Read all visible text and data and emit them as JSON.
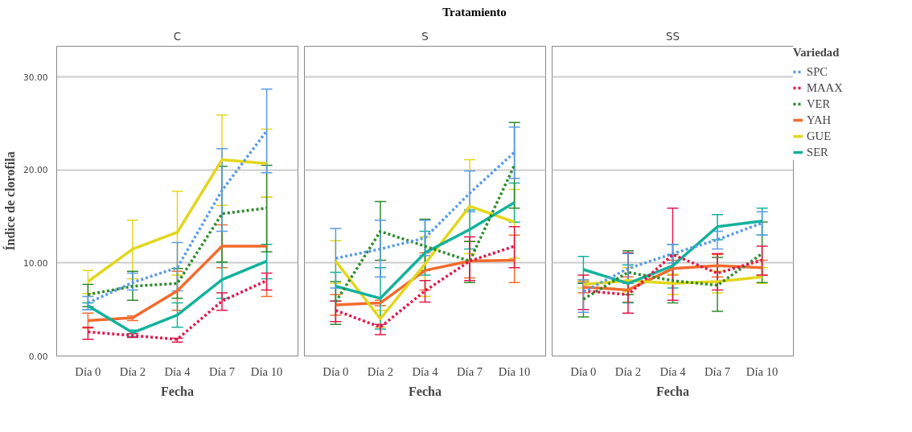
{
  "chart_data": [
    {
      "type": "line",
      "title": "C",
      "annotations": [
        "Tratamiento"
      ],
      "xlabel": "Fecha",
      "ylabel": "Índice de clorofila",
      "categories": [
        "Día 0",
        "Día 2",
        "Día 4",
        "Día 7",
        "Día 10"
      ],
      "ylim": [
        0,
        33.3
      ],
      "yticks": [
        {
          "value": 0,
          "label": "0.00"
        },
        {
          "value": 10,
          "label": "10.00"
        },
        {
          "value": 20,
          "label": "20.00"
        },
        {
          "value": 30,
          "label": "30.00"
        }
      ],
      "grid": "y",
      "series": [
        {
          "color": "#5b9be6",
          "line_style": "dotted",
          "values": [
            5.7,
            7.9,
            9.5,
            17.8,
            24.2
          ],
          "errors": [
            [
              5.0,
              6.4
            ],
            [
              7.1,
              8.9
            ],
            [
              7.0,
              12.2
            ],
            [
              13.4,
              22.3
            ],
            [
              19.7,
              28.7
            ]
          ]
        },
        {
          "color": "#e0184c",
          "line_style": "dotted",
          "values": [
            2.6,
            2.2,
            1.8,
            5.9,
            8.1
          ],
          "errors": [
            [
              1.8,
              3.1
            ],
            [
              2.0,
              2.4
            ],
            [
              1.5,
              1.9
            ],
            [
              4.9,
              6.8
            ],
            [
              7.1,
              8.9
            ]
          ]
        },
        {
          "color": "#2e8b2e",
          "line_style": "dotted",
          "values": [
            6.6,
            7.5,
            7.8,
            15.3,
            15.9
          ],
          "errors": [
            [
              5.3,
              7.7
            ],
            [
              6.0,
              9.1
            ],
            [
              6.2,
              9.4
            ],
            [
              10.1,
              20.4
            ],
            [
              11.2,
              20.5
            ]
          ]
        },
        {
          "color": "#f26b2e",
          "line_style": "solid",
          "values": [
            3.8,
            4.1,
            7.0,
            11.8,
            11.8
          ],
          "errors": [
            [
              3.0,
              4.6
            ],
            [
              3.8,
              4.3
            ],
            [
              4.9,
              9.1
            ],
            [
              9.5,
              14.1
            ],
            [
              6.4,
              17.1
            ]
          ]
        },
        {
          "color": "#e3d61c",
          "line_style": "solid",
          "values": [
            8.0,
            11.5,
            13.3,
            21.1,
            20.7
          ],
          "errors": [
            [
              6.7,
              9.2
            ],
            [
              8.3,
              14.6
            ],
            [
              8.7,
              17.7
            ],
            [
              16.2,
              25.9
            ],
            [
              17.1,
              24.4
            ]
          ]
        },
        {
          "color": "#14b29c",
          "line_style": "solid",
          "values": [
            5.4,
            2.5,
            4.4,
            8.2,
            10.2
          ],
          "errors": [
            [
              5.0,
              5.7
            ],
            [
              2.1,
              2.8
            ],
            [
              3.1,
              5.7
            ],
            [
              6.2,
              10.1
            ],
            [
              8.3,
              12.0
            ]
          ]
        }
      ]
    },
    {
      "type": "line",
      "title": "S",
      "xlabel": "Fecha",
      "categories": [
        "Día 0",
        "Día 2",
        "Día 4",
        "Día 7",
        "Día 10"
      ],
      "ylim": [
        0,
        33.3
      ],
      "yticks": [
        0,
        10,
        20,
        30
      ],
      "tick_labels": "x",
      "grid": "y",
      "series": [
        {
          "color": "#5b9be6",
          "line_style": "dotted",
          "values": [
            10.5,
            11.5,
            12.7,
            17.5,
            21.9
          ],
          "errors": [
            [
              7.3,
              13.7
            ],
            [
              8.5,
              14.6
            ],
            [
              10.8,
              14.6
            ],
            [
              15.5,
              19.9
            ],
            [
              19.1,
              24.6
            ]
          ]
        },
        {
          "color": "#e0184c",
          "line_style": "dotted",
          "values": [
            4.9,
            3.1,
            7.0,
            10.2,
            11.8
          ],
          "errors": [
            [
              3.7,
              5.9
            ],
            [
              2.3,
              3.4
            ],
            [
              5.8,
              8.1
            ],
            [
              8.1,
              12.8
            ],
            [
              9.5,
              13.9
            ]
          ]
        },
        {
          "color": "#2e8b2e",
          "line_style": "dotted",
          "values": [
            5.8,
            13.4,
            11.8,
            10.2,
            20.5
          ],
          "errors": [
            [
              3.4,
              8.0
            ],
            [
              10.3,
              16.6
            ],
            [
              9.2,
              14.7
            ],
            [
              7.9,
              12.3
            ],
            [
              15.9,
              25.1
            ]
          ]
        },
        {
          "color": "#f26b2e",
          "line_style": "solid",
          "values": [
            5.5,
            5.7,
            9.2,
            10.2,
            10.3
          ],
          "errors": [
            [
              4.4,
              6.6
            ],
            [
              5.4,
              6.0
            ],
            [
              7.1,
              11.1
            ],
            [
              8.4,
              12.3
            ],
            [
              7.9,
              13.0
            ]
          ]
        },
        {
          "color": "#e3d61c",
          "line_style": "solid",
          "values": [
            10.2,
            4.0,
            9.9,
            16.1,
            14.4
          ],
          "errors": [
            [
              7.8,
              12.4
            ],
            [
              3.1,
              4.9
            ],
            [
              6.4,
              12.8
            ],
            [
              11.0,
              21.1
            ],
            [
              10.5,
              17.9
            ]
          ]
        },
        {
          "color": "#14b29c",
          "line_style": "solid",
          "values": [
            7.5,
            6.2,
            11.1,
            13.6,
            16.5
          ],
          "errors": [
            [
              5.9,
              9.0
            ],
            [
              2.9,
              9.5
            ],
            [
              8.7,
              13.4
            ],
            [
              11.5,
              15.7
            ],
            [
              14.4,
              18.6
            ]
          ]
        }
      ]
    },
    {
      "type": "line",
      "title": "SS",
      "xlabel": "Fecha",
      "legend_title": "Variedad",
      "legend": "top right",
      "categories": [
        "Día 0",
        "Día 2",
        "Día 4",
        "Día 7",
        "Día 10"
      ],
      "ylim": [
        0,
        33.3
      ],
      "yticks": [
        0,
        10,
        20,
        30
      ],
      "tick_labels": "x",
      "grid": "y",
      "series": [
        {
          "name": "SPC",
          "color": "#5b9be6",
          "line_style": "dotted",
          "values": [
            6.9,
            9.4,
            11.0,
            12.5,
            14.3
          ],
          "errors": [
            [
              4.7,
              8.2
            ],
            [
              7.8,
              11.0
            ],
            [
              10.0,
              12.0
            ],
            [
              11.5,
              13.4
            ],
            [
              13.0,
              15.5
            ]
          ]
        },
        {
          "name": "MAAX",
          "color": "#e0184c",
          "line_style": "dotted",
          "values": [
            7.0,
            6.6,
            10.9,
            8.9,
            10.3
          ],
          "errors": [
            [
              5.0,
              8.7
            ],
            [
              4.6,
              11.1
            ],
            [
              6.0,
              15.9
            ],
            [
              7.1,
              11.0
            ],
            [
              8.7,
              11.8
            ]
          ]
        },
        {
          "name": "VER",
          "color": "#2e8b2e",
          "line_style": "dotted",
          "values": [
            6.1,
            9.0,
            8.1,
            7.6,
            11.0
          ],
          "errors": [
            [
              4.2,
              7.8
            ],
            [
              6.6,
              11.3
            ],
            [
              5.7,
              10.9
            ],
            [
              4.8,
              10.6
            ],
            [
              7.9,
              14.4
            ]
          ]
        },
        {
          "name": "YAH",
          "color": "#f26b2e",
          "line_style": "solid",
          "values": [
            7.4,
            7.1,
            9.4,
            9.7,
            9.5
          ],
          "errors": [
            [
              6.8,
              8.0
            ],
            [
              5.8,
              8.5
            ],
            [
              8.7,
              10.3
            ],
            [
              8.5,
              10.9
            ],
            [
              8.7,
              10.3
            ]
          ]
        },
        {
          "name": "GUE",
          "color": "#e3d61c",
          "line_style": "solid",
          "values": [
            7.7,
            8.1,
            7.8,
            8.0,
            8.5
          ],
          "errors": [
            [
              7.3,
              8.1
            ],
            [
              6.9,
              9.5
            ],
            [
              6.6,
              8.8
            ],
            [
              6.8,
              9.1
            ],
            [
              7.8,
              9.5
            ]
          ]
        },
        {
          "name": "SER",
          "color": "#14b29c",
          "line_style": "solid",
          "values": [
            9.3,
            7.8,
            9.7,
            13.9,
            14.5
          ],
          "errors": [
            [
              7.8,
              10.7
            ],
            [
              5.7,
              9.8
            ],
            [
              7.3,
              12.0
            ],
            [
              12.5,
              15.2
            ],
            [
              13.0,
              15.9
            ]
          ]
        }
      ]
    }
  ]
}
